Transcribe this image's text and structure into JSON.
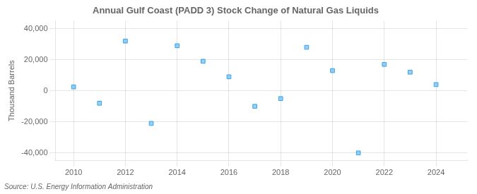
{
  "chart_data": {
    "type": "scatter",
    "title": "Annual Gulf Coast (PADD 3) Stock Change of Natural Gas Liquids",
    "ylabel": "Thousand Barrels",
    "annotations": [
      "Source: U.S. Energy Information Administration"
    ],
    "x": [
      2010,
      2011,
      2012,
      2013,
      2014,
      2015,
      2016,
      2017,
      2018,
      2019,
      2020,
      2021,
      2022,
      2023,
      2024
    ],
    "values": [
      2500,
      -8000,
      32000,
      -21000,
      29000,
      19000,
      9000,
      -10000,
      -5000,
      28000,
      13000,
      -40000,
      17000,
      12000,
      4000
    ],
    "marker": "square",
    "xlim": [
      2009.3,
      2025.2
    ],
    "xticks": [
      2010,
      2012,
      2014,
      2016,
      2018,
      2020,
      2022,
      2024
    ],
    "ylim": [
      -45000,
      45000
    ],
    "yticks": [
      {
        "value": -40000,
        "label": "-40,000"
      },
      {
        "value": -20000,
        "label": "-20,000"
      },
      0,
      {
        "value": 20000,
        "label": "20,000"
      },
      {
        "value": 40000,
        "label": "40,000"
      }
    ],
    "grid": true
  }
}
